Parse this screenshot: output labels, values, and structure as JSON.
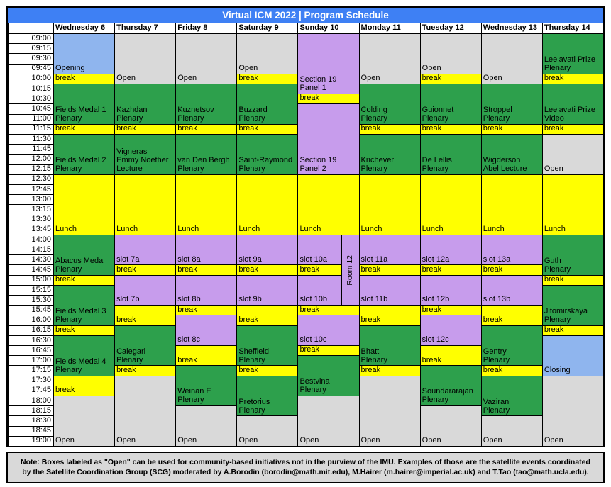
{
  "title": "Virtual ICM 2022 | Program Schedule",
  "note": "Note: Boxes labeled as \"Open\" can be used for community-based initiatives not in the purview of the IMU. Examples of those are the satellite events coordinated by the Satellite Coordination Group (SCG) moderated by A.Borodin (borodin@math.mit.edu), M.Hairer (m.hairer@imperial.ac.uk) and T.Tao (tao@math.ucla.edu).",
  "colors": {
    "title_blue": "#3e80f4",
    "lightblue": "#8fb5ee",
    "green": "#2da04c",
    "yellow": "#ffff00",
    "purple": "#c79cec",
    "gray": "#d9d9d9"
  },
  "days": [
    "Wednesday 6",
    "Thursday 7",
    "Friday 8",
    "Saturday 9",
    "Sunday 10",
    "Monday 11",
    "Tuesday 12",
    "Wednesday 13",
    "Thursday 14"
  ],
  "times": [
    "09:00",
    "09:15",
    "09:30",
    "09:45",
    "10:00",
    "10:15",
    "10:30",
    "10:45",
    "11:00",
    "11:15",
    "11:30",
    "11:45",
    "12:00",
    "12:15",
    "12:30",
    "12:45",
    "13:00",
    "13:15",
    "13:30",
    "13:45",
    "14:00",
    "14:15",
    "14:30",
    "14:45",
    "15:00",
    "15:15",
    "15:30",
    "15:45",
    "16:00",
    "16:15",
    "16:30",
    "16:45",
    "17:00",
    "17:15",
    "17:30",
    "17:45",
    "18:00",
    "18:15",
    "18:30",
    "18:45",
    "19:00"
  ],
  "room_strip": {
    "day": "Sunday 10",
    "label": "Room 12",
    "start": 20,
    "span": 7,
    "color": "purple"
  },
  "columns": [
    [
      {
        "start": 0,
        "span": 4,
        "label": "Opening",
        "color": "lightblue"
      },
      {
        "start": 4,
        "span": 1,
        "label": "break",
        "color": "yellow"
      },
      {
        "start": 5,
        "span": 4,
        "label": "Fields Medal 1\nPlenary",
        "color": "green"
      },
      {
        "start": 9,
        "span": 1,
        "label": "break",
        "color": "yellow"
      },
      {
        "start": 10,
        "span": 4,
        "label": "Fields Medal 2\nPlenary",
        "color": "green"
      },
      {
        "start": 14,
        "span": 6,
        "label": "Lunch",
        "color": "yellow"
      },
      {
        "start": 20,
        "span": 4,
        "label": "Abacus Medal\nPlenary",
        "color": "green"
      },
      {
        "start": 24,
        "span": 1,
        "label": "break",
        "color": "yellow"
      },
      {
        "start": 25,
        "span": 4,
        "label": "Fields Medal 3\nPlenary",
        "color": "green"
      },
      {
        "start": 29,
        "span": 1,
        "label": "break",
        "color": "yellow"
      },
      {
        "start": 30,
        "span": 4,
        "label": "Fields Medal 4\nPlenary",
        "color": "green"
      },
      {
        "start": 34,
        "span": 2,
        "label": "break",
        "color": "yellow"
      },
      {
        "start": 36,
        "span": 5,
        "label": "Open",
        "color": "gray"
      }
    ],
    [
      {
        "start": 0,
        "span": 5,
        "label": "Open",
        "color": "gray"
      },
      {
        "start": 5,
        "span": 4,
        "label": "Kazhdan\nPlenary",
        "color": "green"
      },
      {
        "start": 9,
        "span": 1,
        "label": "break",
        "color": "yellow"
      },
      {
        "start": 10,
        "span": 4,
        "label": "Vigneras\nEmmy Noether\nLecture",
        "color": "green"
      },
      {
        "start": 14,
        "span": 6,
        "label": "Lunch",
        "color": "yellow"
      },
      {
        "start": 20,
        "span": 3,
        "label": "slot 7a",
        "color": "purple"
      },
      {
        "start": 23,
        "span": 1,
        "label": "break",
        "color": "yellow"
      },
      {
        "start": 24,
        "span": 3,
        "label": "slot 7b",
        "color": "purple"
      },
      {
        "start": 27,
        "span": 2,
        "label": "break",
        "color": "yellow"
      },
      {
        "start": 29,
        "span": 4,
        "label": "Calegari\nPlenary",
        "color": "green"
      },
      {
        "start": 33,
        "span": 1,
        "label": "break",
        "color": "yellow"
      },
      {
        "start": 34,
        "span": 7,
        "label": "Open",
        "color": "gray"
      }
    ],
    [
      {
        "start": 0,
        "span": 5,
        "label": "Open",
        "color": "gray"
      },
      {
        "start": 5,
        "span": 4,
        "label": "Kuznetsov\nPlenary",
        "color": "green"
      },
      {
        "start": 9,
        "span": 1,
        "label": "break",
        "color": "yellow"
      },
      {
        "start": 10,
        "span": 4,
        "label": "van Den Bergh\nPlenary",
        "color": "green"
      },
      {
        "start": 14,
        "span": 6,
        "label": "Lunch",
        "color": "yellow"
      },
      {
        "start": 20,
        "span": 3,
        "label": "slot 8a",
        "color": "purple"
      },
      {
        "start": 23,
        "span": 1,
        "label": "break",
        "color": "yellow"
      },
      {
        "start": 24,
        "span": 3,
        "label": "slot 8b",
        "color": "purple"
      },
      {
        "start": 27,
        "span": 1,
        "label": "break",
        "color": "yellow"
      },
      {
        "start": 28,
        "span": 3,
        "label": "slot 8c",
        "color": "purple"
      },
      {
        "start": 31,
        "span": 2,
        "label": "break",
        "color": "yellow"
      },
      {
        "start": 33,
        "span": 4,
        "label": "Weinan E\nPlenary",
        "color": "green"
      },
      {
        "start": 37,
        "span": 4,
        "label": "Open",
        "color": "gray"
      }
    ],
    [
      {
        "start": 0,
        "span": 4,
        "label": "Open",
        "color": "gray"
      },
      {
        "start": 4,
        "span": 1,
        "label": "break",
        "color": "yellow"
      },
      {
        "start": 5,
        "span": 4,
        "label": "Buzzard\nPlenary",
        "color": "green"
      },
      {
        "start": 9,
        "span": 1,
        "label": "break",
        "color": "yellow"
      },
      {
        "start": 10,
        "span": 4,
        "label": "Saint-Raymond\nPlenary",
        "color": "green"
      },
      {
        "start": 14,
        "span": 6,
        "label": "Lunch",
        "color": "yellow"
      },
      {
        "start": 20,
        "span": 3,
        "label": "slot 9a",
        "color": "purple"
      },
      {
        "start": 23,
        "span": 1,
        "label": "break",
        "color": "yellow"
      },
      {
        "start": 24,
        "span": 3,
        "label": "slot 9b",
        "color": "purple"
      },
      {
        "start": 27,
        "span": 2,
        "label": "break",
        "color": "yellow"
      },
      {
        "start": 29,
        "span": 4,
        "label": "Sheffield\nPlenary",
        "color": "green"
      },
      {
        "start": 33,
        "span": 1,
        "label": "break",
        "color": "yellow"
      },
      {
        "start": 34,
        "span": 4,
        "label": "Pretorius\nPlenary",
        "color": "green"
      },
      {
        "start": 38,
        "span": 3,
        "label": "Open",
        "color": "gray"
      }
    ],
    [
      {
        "start": 0,
        "span": 6,
        "label": "Section 19\nPanel 1",
        "color": "purple"
      },
      {
        "start": 6,
        "span": 1,
        "label": "break",
        "color": "yellow"
      },
      {
        "start": 7,
        "span": 7,
        "label": "Section 19\nPanel 2",
        "color": "purple"
      },
      {
        "start": 14,
        "span": 6,
        "label": "Lunch",
        "color": "yellow"
      },
      {
        "start": 20,
        "span": 3,
        "label": "slot 10a",
        "color": "purple",
        "width": "main"
      },
      {
        "start": 23,
        "span": 1,
        "label": "break",
        "color": "yellow",
        "width": "main"
      },
      {
        "start": 24,
        "span": 3,
        "label": "slot 10b",
        "color": "purple",
        "width": "main"
      },
      {
        "start": 27,
        "span": 1,
        "label": "break",
        "color": "yellow"
      },
      {
        "start": 28,
        "span": 3,
        "label": "slot 10c",
        "color": "purple"
      },
      {
        "start": 31,
        "span": 1,
        "label": "break",
        "color": "yellow"
      },
      {
        "start": 32,
        "span": 4,
        "label": "Bestvina\nPlenary",
        "color": "green"
      },
      {
        "start": 36,
        "span": 5,
        "label": "Open",
        "color": "gray"
      }
    ],
    [
      {
        "start": 0,
        "span": 5,
        "label": "Open",
        "color": "gray"
      },
      {
        "start": 5,
        "span": 4,
        "label": "Colding\nPlenary",
        "color": "green"
      },
      {
        "start": 9,
        "span": 1,
        "label": "break",
        "color": "yellow"
      },
      {
        "start": 10,
        "span": 4,
        "label": "Krichever\nPlenary",
        "color": "green"
      },
      {
        "start": 14,
        "span": 6,
        "label": "Lunch",
        "color": "yellow"
      },
      {
        "start": 20,
        "span": 3,
        "label": "slot 11a",
        "color": "purple"
      },
      {
        "start": 23,
        "span": 1,
        "label": "break",
        "color": "yellow"
      },
      {
        "start": 24,
        "span": 3,
        "label": "slot 11b",
        "color": "purple"
      },
      {
        "start": 27,
        "span": 2,
        "label": "break",
        "color": "yellow"
      },
      {
        "start": 29,
        "span": 4,
        "label": "Bhatt\nPlenary",
        "color": "green"
      },
      {
        "start": 33,
        "span": 1,
        "label": "break",
        "color": "yellow"
      },
      {
        "start": 34,
        "span": 7,
        "label": "Open",
        "color": "gray"
      }
    ],
    [
      {
        "start": 0,
        "span": 4,
        "label": "Open",
        "color": "gray"
      },
      {
        "start": 4,
        "span": 1,
        "label": "break",
        "color": "yellow"
      },
      {
        "start": 5,
        "span": 4,
        "label": "Guionnet\nPlenary",
        "color": "green"
      },
      {
        "start": 9,
        "span": 1,
        "label": "break",
        "color": "yellow"
      },
      {
        "start": 10,
        "span": 4,
        "label": "De Lellis\nPlenary",
        "color": "green"
      },
      {
        "start": 14,
        "span": 6,
        "label": "Lunch",
        "color": "yellow"
      },
      {
        "start": 20,
        "span": 3,
        "label": "slot 12a",
        "color": "purple"
      },
      {
        "start": 23,
        "span": 1,
        "label": "break",
        "color": "yellow"
      },
      {
        "start": 24,
        "span": 3,
        "label": "slot 12b",
        "color": "purple"
      },
      {
        "start": 27,
        "span": 1,
        "label": "break",
        "color": "yellow"
      },
      {
        "start": 28,
        "span": 3,
        "label": "slot 12c",
        "color": "purple"
      },
      {
        "start": 31,
        "span": 2,
        "label": "break",
        "color": "yellow"
      },
      {
        "start": 33,
        "span": 4,
        "label": "Soundararajan\nPlenary",
        "color": "green"
      },
      {
        "start": 37,
        "span": 4,
        "label": "Open",
        "color": "gray"
      }
    ],
    [
      {
        "start": 0,
        "span": 5,
        "label": "Open",
        "color": "gray"
      },
      {
        "start": 5,
        "span": 4,
        "label": "Stroppel\nPlenary",
        "color": "green"
      },
      {
        "start": 9,
        "span": 1,
        "label": "break",
        "color": "yellow"
      },
      {
        "start": 10,
        "span": 4,
        "label": "Wigderson\nAbel Lecture",
        "color": "green"
      },
      {
        "start": 14,
        "span": 6,
        "label": "Lunch",
        "color": "yellow"
      },
      {
        "start": 20,
        "span": 3,
        "label": "slot 13a",
        "color": "purple"
      },
      {
        "start": 23,
        "span": 1,
        "label": "break",
        "color": "yellow"
      },
      {
        "start": 24,
        "span": 3,
        "label": "slot 13b",
        "color": "purple"
      },
      {
        "start": 27,
        "span": 2,
        "label": "break",
        "color": "yellow"
      },
      {
        "start": 29,
        "span": 4,
        "label": "Gentry\nPlenary",
        "color": "green"
      },
      {
        "start": 33,
        "span": 1,
        "label": "break",
        "color": "yellow"
      },
      {
        "start": 34,
        "span": 4,
        "label": "Vazirani\nPlenary",
        "color": "green"
      },
      {
        "start": 38,
        "span": 3,
        "label": "Open",
        "color": "gray"
      }
    ],
    [
      {
        "start": 0,
        "span": 4,
        "label": "Leelavati Prize\nPlenary",
        "color": "green"
      },
      {
        "start": 4,
        "span": 1,
        "label": "break",
        "color": "yellow"
      },
      {
        "start": 5,
        "span": 4,
        "label": "Leelavati Prize\nVideo",
        "color": "green"
      },
      {
        "start": 9,
        "span": 1,
        "label": "break",
        "color": "yellow"
      },
      {
        "start": 10,
        "span": 4,
        "label": "Open",
        "color": "gray"
      },
      {
        "start": 14,
        "span": 6,
        "label": "Lunch",
        "color": "yellow"
      },
      {
        "start": 20,
        "span": 4,
        "label": "Guth\nPlenary",
        "color": "green"
      },
      {
        "start": 24,
        "span": 1,
        "label": "break",
        "color": "yellow"
      },
      {
        "start": 25,
        "span": 4,
        "label": "Jitomirskaya\nPlenary",
        "color": "green"
      },
      {
        "start": 29,
        "span": 1,
        "label": "break",
        "color": "yellow"
      },
      {
        "start": 30,
        "span": 4,
        "label": "Closing",
        "color": "lightblue"
      },
      {
        "start": 34,
        "span": 7,
        "label": "Open",
        "color": "gray"
      }
    ]
  ]
}
